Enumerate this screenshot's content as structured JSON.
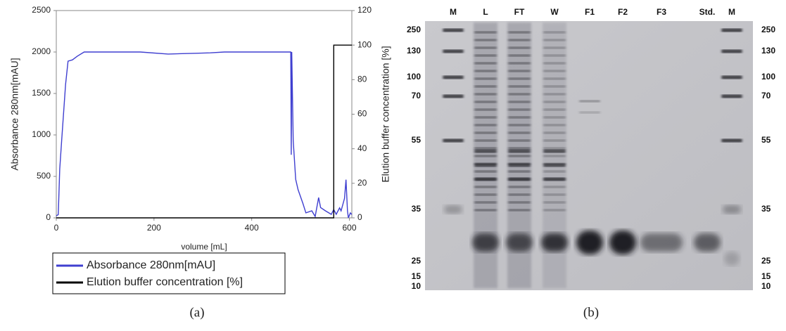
{
  "chart_data": {
    "type": "line",
    "xlabel": "volume [mL]",
    "ylabel": "Absorbance 280nm[mAU]",
    "y2label": "Elution buffer concentration [%]",
    "xlim": [
      0,
      605
    ],
    "xticks": [
      0,
      200,
      400,
      600
    ],
    "ylim": [
      0,
      2500
    ],
    "yticks": [
      0,
      500,
      1000,
      1500,
      2000,
      2500
    ],
    "y2lim": [
      0,
      120
    ],
    "y2ticks": [
      0,
      20,
      40,
      60,
      80,
      100,
      120
    ],
    "grid": false,
    "series": [
      {
        "name": "Absorbance 280nm[mAU]",
        "color": "#3f3fd0",
        "x": [
          0,
          4,
          7,
          11,
          19,
          24,
          33,
          43,
          57,
          172,
          229,
          286,
          315,
          344,
          480,
          481,
          482,
          485,
          490,
          495,
          505,
          511,
          523,
          530,
          537,
          541,
          551,
          563,
          568,
          573,
          580,
          583,
          587,
          590,
          593,
          596,
          598,
          602,
          605
        ],
        "values": [
          25,
          40,
          590,
          930,
          1610,
          1890,
          1905,
          1950,
          2000,
          2000,
          1975,
          1985,
          1990,
          2000,
          2000,
          760,
          2000,
          930,
          465,
          340,
          170,
          60,
          85,
          17,
          245,
          125,
          85,
          42,
          100,
          42,
          120,
          85,
          170,
          235,
          460,
          85,
          0,
          60,
          40
        ]
      },
      {
        "name": "Elution buffer concentration [%]",
        "color": "#000000",
        "axis": "y2",
        "x": [
          0,
          568,
          568,
          605
        ],
        "values": [
          0,
          0,
          100,
          100
        ]
      }
    ]
  },
  "panel_labels": {
    "a": "(a)",
    "b": "(b)"
  },
  "gel": {
    "lanes": [
      "M",
      "L",
      "FT",
      "W",
      "F1",
      "F2",
      "F3",
      "Std.",
      "M"
    ],
    "markers_left": [
      250,
      130,
      100,
      70,
      55,
      35,
      25,
      15,
      10
    ],
    "markers_right": [
      250,
      130,
      100,
      70,
      55,
      35,
      25,
      15,
      10
    ]
  }
}
